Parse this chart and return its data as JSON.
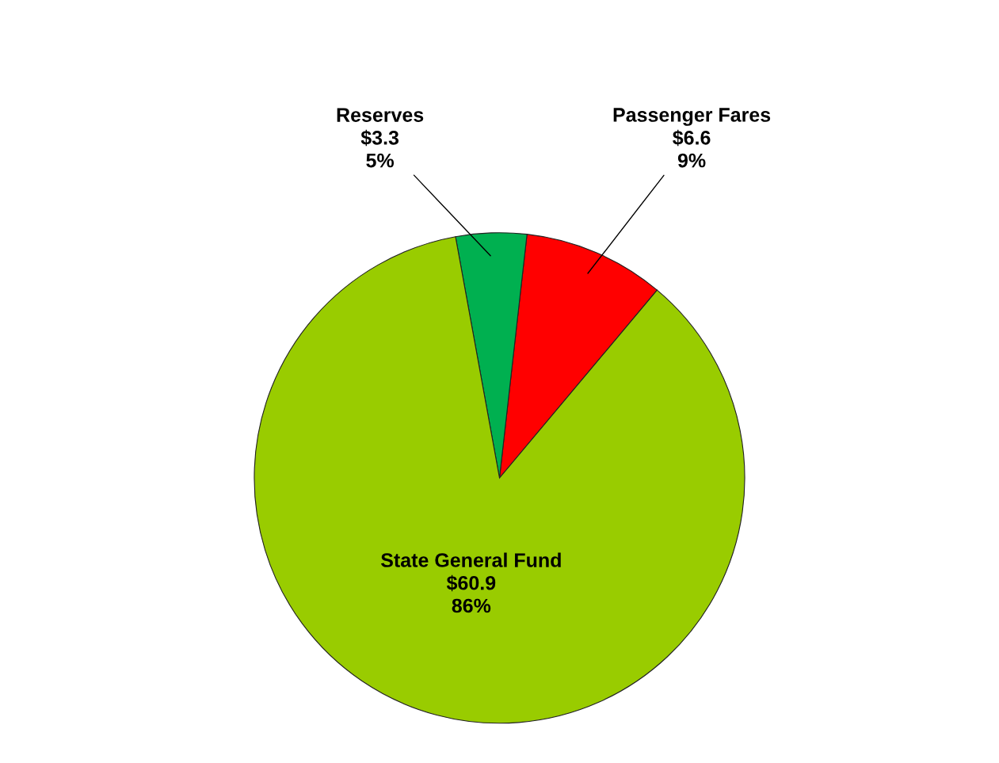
{
  "chart_data": {
    "type": "pie",
    "categories": [
      "Passenger Fares",
      "Reserves",
      "State General Fund"
    ],
    "values": [
      6.6,
      3.3,
      60.9
    ],
    "colors": [
      "#ff0000",
      "#00b050",
      "#99cc00"
    ],
    "value_labels": [
      "$6.6\n9%",
      "$3.3\n5%",
      "$60.9\n86%"
    ]
  }
}
